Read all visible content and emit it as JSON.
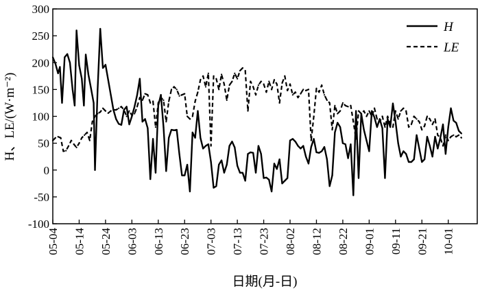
{
  "chart_data": {
    "type": "line",
    "xlabel": "日期(月-日)",
    "ylabel": "H、LE/(W·m⁻²)",
    "ylim": [
      -100,
      300
    ],
    "yticks": [
      -100,
      -50,
      0,
      50,
      100,
      150,
      200,
      250,
      300
    ],
    "x_start_day": 0,
    "x_end_day": 161,
    "xticks": [
      {
        "day": 0,
        "label": "05-04"
      },
      {
        "day": 10,
        "label": "05-14"
      },
      {
        "day": 20,
        "label": "05-24"
      },
      {
        "day": 30,
        "label": "06-03"
      },
      {
        "day": 40,
        "label": "06-13"
      },
      {
        "day": 50,
        "label": "06-23"
      },
      {
        "day": 60,
        "label": "07-03"
      },
      {
        "day": 70,
        "label": "07-13"
      },
      {
        "day": 80,
        "label": "07-23"
      },
      {
        "day": 90,
        "label": "08-02"
      },
      {
        "day": 100,
        "label": "08-12"
      },
      {
        "day": 110,
        "label": "08-22"
      },
      {
        "day": 120,
        "label": "09-01"
      },
      {
        "day": 130,
        "label": "09-11"
      },
      {
        "day": 140,
        "label": "09-21"
      },
      {
        "day": 150,
        "label": "10-01"
      }
    ],
    "legend": {
      "placement": "top-right"
    },
    "grid": false,
    "series": [
      {
        "name": "H",
        "style": "solid",
        "color": "#000000",
        "points": [
          [
            0,
            210
          ],
          [
            1,
            198
          ],
          [
            2,
            180
          ],
          [
            2.7,
            192
          ],
          [
            3.5,
            125
          ],
          [
            4.5,
            210
          ],
          [
            5.5,
            216
          ],
          [
            6.5,
            200
          ],
          [
            7.5,
            150
          ],
          [
            8.3,
            120
          ],
          [
            9,
            260
          ],
          [
            10,
            195
          ],
          [
            11,
            170
          ],
          [
            11.8,
            120
          ],
          [
            12.5,
            215
          ],
          [
            13.5,
            178
          ],
          [
            14.5,
            152
          ],
          [
            15.5,
            125
          ],
          [
            16,
            0
          ],
          [
            17,
            150
          ],
          [
            18,
            263
          ],
          [
            19,
            190
          ],
          [
            20,
            196
          ],
          [
            21,
            168
          ],
          [
            22,
            140
          ],
          [
            23,
            112
          ],
          [
            24,
            95
          ],
          [
            25,
            86
          ],
          [
            26,
            84
          ],
          [
            27,
            112
          ],
          [
            28,
            118
          ],
          [
            29,
            85
          ],
          [
            30,
            100
          ],
          [
            31,
            118
          ],
          [
            32,
            140
          ],
          [
            33,
            170
          ],
          [
            34,
            90
          ],
          [
            35,
            95
          ],
          [
            36,
            78
          ],
          [
            37,
            -17
          ],
          [
            38,
            58
          ],
          [
            39,
            -5
          ],
          [
            40,
            120
          ],
          [
            41,
            140
          ],
          [
            42,
            80
          ],
          [
            43,
            -2
          ],
          [
            44,
            60
          ],
          [
            45,
            75
          ],
          [
            46,
            74
          ],
          [
            47,
            75
          ],
          [
            48,
            30
          ],
          [
            49,
            -10
          ],
          [
            50,
            -10
          ],
          [
            51,
            10
          ],
          [
            52,
            -40
          ],
          [
            53,
            70
          ],
          [
            54,
            60
          ],
          [
            55,
            110
          ],
          [
            56,
            60
          ],
          [
            57,
            40
          ],
          [
            58,
            45
          ],
          [
            59,
            48
          ],
          [
            60,
            15
          ],
          [
            61,
            -33
          ],
          [
            62,
            -30
          ],
          [
            63,
            10
          ],
          [
            64,
            18
          ],
          [
            65,
            -5
          ],
          [
            66,
            10
          ],
          [
            67,
            45
          ],
          [
            68,
            53
          ],
          [
            69,
            42
          ],
          [
            70,
            8
          ],
          [
            71,
            -5
          ],
          [
            72,
            -5
          ],
          [
            73,
            -20
          ],
          [
            74,
            30
          ],
          [
            75,
            33
          ],
          [
            76,
            32
          ],
          [
            77,
            -5
          ],
          [
            78,
            45
          ],
          [
            79,
            30
          ],
          [
            80,
            -15
          ],
          [
            81,
            -14
          ],
          [
            82,
            -18
          ],
          [
            83,
            -40
          ],
          [
            84,
            12
          ],
          [
            85,
            2
          ],
          [
            86,
            20
          ],
          [
            87,
            -25
          ],
          [
            88,
            -20
          ],
          [
            89,
            -15
          ],
          [
            90,
            55
          ],
          [
            91,
            58
          ],
          [
            92,
            53
          ],
          [
            93,
            45
          ],
          [
            94,
            40
          ],
          [
            95,
            45
          ],
          [
            96,
            25
          ],
          [
            97,
            12
          ],
          [
            98,
            43
          ],
          [
            99,
            58
          ],
          [
            100,
            33
          ],
          [
            101,
            32
          ],
          [
            102,
            35
          ],
          [
            103,
            43
          ],
          [
            104,
            20
          ],
          [
            105,
            -30
          ],
          [
            106,
            -10
          ],
          [
            107,
            70
          ],
          [
            108,
            88
          ],
          [
            109,
            80
          ],
          [
            110,
            50
          ],
          [
            111,
            48
          ],
          [
            112,
            22
          ],
          [
            113,
            48
          ],
          [
            114,
            -47
          ],
          [
            115,
            110
          ],
          [
            116,
            -15
          ],
          [
            117,
            105
          ],
          [
            118,
            75
          ],
          [
            119,
            55
          ],
          [
            120,
            35
          ],
          [
            121,
            110
          ],
          [
            122,
            98
          ],
          [
            123,
            80
          ],
          [
            124,
            95
          ],
          [
            125,
            78
          ],
          [
            126,
            -15
          ],
          [
            127,
            95
          ],
          [
            128,
            80
          ],
          [
            129,
            124
          ],
          [
            130,
            90
          ],
          [
            131,
            50
          ],
          [
            132,
            25
          ],
          [
            133,
            35
          ],
          [
            134,
            30
          ],
          [
            135,
            15
          ],
          [
            136,
            15
          ],
          [
            137,
            20
          ],
          [
            138,
            65
          ],
          [
            139,
            40
          ],
          [
            140,
            15
          ],
          [
            141,
            20
          ],
          [
            142,
            62
          ],
          [
            143,
            45
          ],
          [
            144,
            25
          ],
          [
            145,
            62
          ],
          [
            146,
            40
          ],
          [
            147,
            60
          ],
          [
            148,
            85
          ],
          [
            149,
            30
          ],
          [
            150,
            80
          ],
          [
            151,
            115
          ],
          [
            152,
            92
          ],
          [
            153,
            88
          ],
          [
            154,
            73
          ],
          [
            155,
            68
          ]
        ]
      },
      {
        "name": "LE",
        "style": "dashed",
        "color": "#000000",
        "points": [
          [
            0,
            55
          ],
          [
            1,
            60
          ],
          [
            2,
            62
          ],
          [
            3,
            60
          ],
          [
            4,
            35
          ],
          [
            5,
            36
          ],
          [
            6,
            45
          ],
          [
            7,
            55
          ],
          [
            8,
            48
          ],
          [
            9,
            42
          ],
          [
            10,
            50
          ],
          [
            11,
            60
          ],
          [
            12,
            65
          ],
          [
            13,
            70
          ],
          [
            14,
            55
          ],
          [
            15,
            90
          ],
          [
            16,
            100
          ],
          [
            17,
            105
          ],
          [
            18,
            108
          ],
          [
            19,
            115
          ],
          [
            20,
            110
          ],
          [
            21,
            106
          ],
          [
            22,
            110
          ],
          [
            23,
            112
          ],
          [
            24,
            112
          ],
          [
            25,
            115
          ],
          [
            26,
            118
          ],
          [
            27,
            112
          ],
          [
            28,
            100
          ],
          [
            29,
            110
          ],
          [
            30,
            102
          ],
          [
            31,
            105
          ],
          [
            32,
            118
          ],
          [
            33,
            135
          ],
          [
            34,
            130
          ],
          [
            35,
            142
          ],
          [
            36,
            140
          ],
          [
            37,
            125
          ],
          [
            38,
            128
          ],
          [
            39,
            80
          ],
          [
            40,
            125
          ],
          [
            41,
            135
          ],
          [
            42,
            130
          ],
          [
            43,
            90
          ],
          [
            44,
            128
          ],
          [
            45,
            150
          ],
          [
            46,
            155
          ],
          [
            47,
            150
          ],
          [
            48,
            138
          ],
          [
            49,
            140
          ],
          [
            50,
            142
          ],
          [
            51,
            100
          ],
          [
            52,
            95
          ],
          [
            53,
            100
          ],
          [
            54,
            128
          ],
          [
            55,
            145
          ],
          [
            56,
            168
          ],
          [
            57,
            175
          ],
          [
            58,
            155
          ],
          [
            59,
            180
          ],
          [
            60,
            45
          ],
          [
            61,
            175
          ],
          [
            62,
            170
          ],
          [
            63,
            150
          ],
          [
            64,
            178
          ],
          [
            65,
            160
          ],
          [
            66,
            130
          ],
          [
            67,
            158
          ],
          [
            68,
            165
          ],
          [
            69,
            180
          ],
          [
            70,
            170
          ],
          [
            71,
            185
          ],
          [
            72,
            190
          ],
          [
            73,
            185
          ],
          [
            74,
            110
          ],
          [
            75,
            165
          ],
          [
            76,
            155
          ],
          [
            77,
            140
          ],
          [
            78,
            158
          ],
          [
            79,
            165
          ],
          [
            80,
            160
          ],
          [
            81,
            145
          ],
          [
            82,
            165
          ],
          [
            83,
            150
          ],
          [
            84,
            168
          ],
          [
            85,
            160
          ],
          [
            86,
            125
          ],
          [
            87,
            162
          ],
          [
            88,
            175
          ],
          [
            89,
            148
          ],
          [
            90,
            160
          ],
          [
            91,
            140
          ],
          [
            92,
            145
          ],
          [
            93,
            135
          ],
          [
            94,
            142
          ],
          [
            95,
            150
          ],
          [
            96,
            148
          ],
          [
            97,
            150
          ],
          [
            98,
            55
          ],
          [
            99,
            100
          ],
          [
            100,
            152
          ],
          [
            101,
            145
          ],
          [
            102,
            158
          ],
          [
            103,
            140
          ],
          [
            104,
            130
          ],
          [
            105,
            125
          ],
          [
            106,
            75
          ],
          [
            107,
            120
          ],
          [
            108,
            105
          ],
          [
            109,
            110
          ],
          [
            110,
            125
          ],
          [
            111,
            120
          ],
          [
            112,
            118
          ],
          [
            113,
            120
          ],
          [
            114,
            90
          ],
          [
            115,
            58
          ],
          [
            116,
            110
          ],
          [
            117,
            105
          ],
          [
            118,
            110
          ],
          [
            119,
            100
          ],
          [
            120,
            110
          ],
          [
            121,
            100
          ],
          [
            122,
            115
          ],
          [
            123,
            95
          ],
          [
            124,
            90
          ],
          [
            125,
            100
          ],
          [
            126,
            80
          ],
          [
            127,
            100
          ],
          [
            128,
            85
          ],
          [
            129,
            80
          ],
          [
            130,
            110
          ],
          [
            131,
            95
          ],
          [
            132,
            110
          ],
          [
            133,
            115
          ],
          [
            134,
            110
          ],
          [
            135,
            80
          ],
          [
            136,
            85
          ],
          [
            137,
            100
          ],
          [
            138,
            95
          ],
          [
            139,
            90
          ],
          [
            140,
            75
          ],
          [
            141,
            82
          ],
          [
            142,
            100
          ],
          [
            143,
            95
          ],
          [
            144,
            85
          ],
          [
            145,
            95
          ],
          [
            146,
            65
          ],
          [
            147,
            60
          ],
          [
            148,
            45
          ],
          [
            149,
            65
          ],
          [
            150,
            55
          ],
          [
            151,
            62
          ],
          [
            152,
            65
          ],
          [
            153,
            62
          ],
          [
            154,
            65
          ],
          [
            155,
            60
          ]
        ]
      }
    ]
  }
}
